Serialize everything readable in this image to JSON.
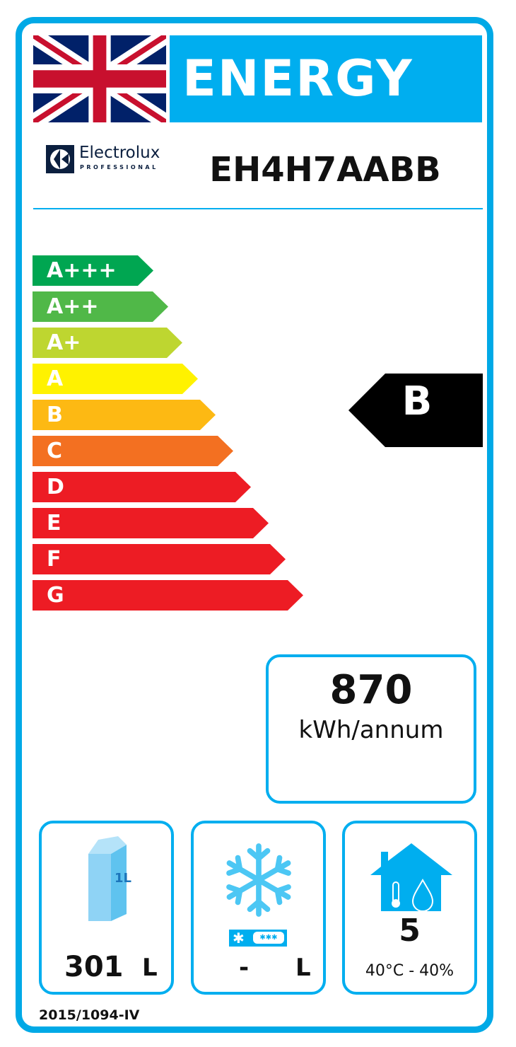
{
  "header": {
    "title": "ENERGY",
    "flag_icon": "uk-flag-icon",
    "brand": "Electrolux",
    "brand_sub": "PROFESSIONAL",
    "model": "EH4H7AABB"
  },
  "scale": [
    {
      "label": "A+++",
      "color": "#00a651"
    },
    {
      "label": "A++",
      "color": "#50b848"
    },
    {
      "label": "A+",
      "color": "#bed630"
    },
    {
      "label": "A",
      "color": "#fff200"
    },
    {
      "label": "B",
      "color": "#fdb913"
    },
    {
      "label": "C",
      "color": "#f37021"
    },
    {
      "label": "D",
      "color": "#ed1c24"
    },
    {
      "label": "E",
      "color": "#ed1c24"
    },
    {
      "label": "F",
      "color": "#ed1c24"
    },
    {
      "label": "G",
      "color": "#ed1c24"
    }
  ],
  "rating": {
    "class": "B"
  },
  "consumption": {
    "value": "870",
    "unit": "kWh/annum"
  },
  "storage": {
    "volume": "301",
    "unit": "L",
    "carton_label": "1L"
  },
  "frozen": {
    "volume": "-",
    "unit": "L"
  },
  "climate": {
    "class": "5",
    "conditions": "40°C - 40%"
  },
  "footer": {
    "regulation": "2015/1094-IV"
  },
  "colors": {
    "accent": "#00aeef"
  }
}
